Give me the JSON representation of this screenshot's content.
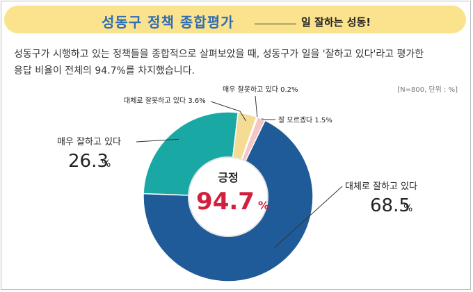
{
  "banner": {
    "title": "성동구 정책 종합평가",
    "subtitle": "일 잘하는 성동!"
  },
  "description": {
    "line1": "성동구가 시행하고 있는 정책들을 종합적으로 살펴보았을 때, 성동구가 일을 '잘하고 있다'라고 평가한",
    "line2": "응답 비율이 전체의 94.7%를 차지했습니다."
  },
  "note": "[N=800, 단위 : %]",
  "colors": {
    "banner": "#fbe38e",
    "title": "#2f6db3",
    "accent": "#d21f3c"
  },
  "chart_data": {
    "type": "pie",
    "donut": true,
    "unit": "%",
    "center_label": "긍정",
    "center_value": "94.7",
    "center_unit": "%",
    "slices": [
      {
        "label": "대체로 잘하고 있다",
        "value": 68.5,
        "color": "#1e5b98"
      },
      {
        "label": "매우 잘하고 있다",
        "value": 26.3,
        "color": "#1aa8a5"
      },
      {
        "label": "대체로 잘못하고 있다",
        "value": 3.6,
        "color": "#f5dc94"
      },
      {
        "label": "매우 잘못하고 있다",
        "value": 0.2,
        "color": "#e85a68"
      },
      {
        "label": "잘 모르겠다",
        "value": 1.5,
        "color": "#f4c6c6"
      }
    ]
  }
}
